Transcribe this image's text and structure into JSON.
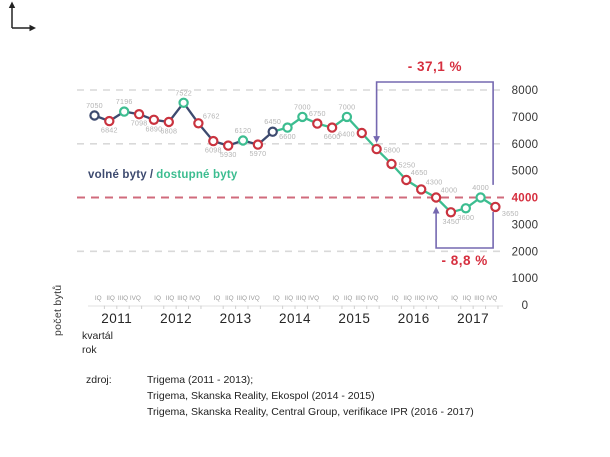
{
  "legend": {
    "series1": "volné byty",
    "separator": "/",
    "series2": "dostupné byty"
  },
  "axis_titles": {
    "y": "počet bytů",
    "x_line1": "kvartál",
    "x_line2": "rok"
  },
  "source": {
    "label": "zdroj:",
    "lines": [
      "Trigema (2011 - 2013);",
      "Trigema, Skanska Reality, Ekospol (2014 - 2015)",
      "Trigema, Skanska Reality, Central Group, verifikace IPR (2016 - 2017)"
    ]
  },
  "colors": {
    "navy": "#3d4a6f",
    "green": "#3cbd90",
    "red_marker": "#c9333f",
    "red_text": "#d62f3f",
    "purple": "#7568b0",
    "grid_red": "#d06b7c",
    "grid_gray": "#d9d9d9",
    "label_gray": "#b5b5b5",
    "quarter_gray": "#9c9c9c",
    "axis_dark": "#343434",
    "year_dark": "#262626"
  },
  "chart_data": {
    "type": "line",
    "title": "",
    "ylabel": "počet bytů",
    "xlabel": "kvartál / rok",
    "ylim": [
      0,
      8000
    ],
    "y_ticks": [
      8000,
      7000,
      6000,
      5000,
      4000,
      3000,
      2000,
      1000,
      0
    ],
    "y_tick_highlight": 4000,
    "gridlines": [
      {
        "value": 8000,
        "style": "gray"
      },
      {
        "value": 6000,
        "style": "gray"
      },
      {
        "value": 4000,
        "style": "red"
      },
      {
        "value": 2000,
        "style": "gray"
      }
    ],
    "years": [
      "2011",
      "2012",
      "2013",
      "2014",
      "2015",
      "2016",
      "2017"
    ],
    "quarter_labels": [
      "IQ",
      "IIQ",
      "IIIQ",
      "IVQ"
    ],
    "line_split_index": 12,
    "series_legend": {
      "navy": "volné byty",
      "green": "dostupné byty"
    },
    "points": [
      {
        "year": 2011,
        "quarter": "IQ",
        "value": 7050,
        "marker": "navy",
        "label_pos": "above"
      },
      {
        "year": 2011,
        "quarter": "IIQ",
        "value": 6842,
        "marker": "red",
        "label_pos": "below"
      },
      {
        "year": 2011,
        "quarter": "IIIQ",
        "value": 7196,
        "marker": "green",
        "label_pos": "above"
      },
      {
        "year": 2011,
        "quarter": "IVQ",
        "value": 7098,
        "marker": "red",
        "label_pos": "below"
      },
      {
        "year": 2012,
        "quarter": "IQ",
        "value": 6890,
        "marker": "red",
        "label_pos": "below"
      },
      {
        "year": 2012,
        "quarter": "IIQ",
        "value": 6808,
        "marker": "red",
        "label_pos": "below"
      },
      {
        "year": 2012,
        "quarter": "IIIQ",
        "value": 7522,
        "marker": "green",
        "label_pos": "above"
      },
      {
        "year": 2012,
        "quarter": "IVQ",
        "value": 6762,
        "marker": "red",
        "label_pos": "above-right"
      },
      {
        "year": 2013,
        "quarter": "IQ",
        "value": 6098,
        "marker": "red",
        "label_pos": "below"
      },
      {
        "year": 2013,
        "quarter": "IIQ",
        "value": 5930,
        "marker": "red",
        "label_pos": "below"
      },
      {
        "year": 2013,
        "quarter": "IIIQ",
        "value": 6120,
        "marker": "green",
        "label_pos": "above"
      },
      {
        "year": 2013,
        "quarter": "IVQ",
        "value": 5970,
        "marker": "red",
        "label_pos": "below"
      },
      {
        "year": 2014,
        "quarter": "IQ",
        "value": 6450,
        "marker": "navy",
        "label_pos": "above"
      },
      {
        "year": 2014,
        "quarter": "IIQ",
        "value": 6600,
        "marker": "green",
        "label_pos": "below"
      },
      {
        "year": 2014,
        "quarter": "IIIQ",
        "value": 7000,
        "marker": "green",
        "label_pos": "above"
      },
      {
        "year": 2014,
        "quarter": "IVQ",
        "value": 6750,
        "marker": "red",
        "label_pos": "above"
      },
      {
        "year": 2015,
        "quarter": "IQ",
        "value": 6600,
        "marker": "red",
        "label_pos": "below"
      },
      {
        "year": 2015,
        "quarter": "IIQ",
        "value": 7000,
        "marker": "green",
        "label_pos": "above"
      },
      {
        "year": 2015,
        "quarter": "IIIQ",
        "value": 6400,
        "marker": "red",
        "label_pos": "left"
      },
      {
        "year": 2015,
        "quarter": "IVQ",
        "value": 5800,
        "marker": "red",
        "label_pos": "right"
      },
      {
        "year": 2016,
        "quarter": "IQ",
        "value": 5250,
        "marker": "red",
        "label_pos": "right"
      },
      {
        "year": 2016,
        "quarter": "IIQ",
        "value": 4650,
        "marker": "red",
        "label_pos": "above-right"
      },
      {
        "year": 2016,
        "quarter": "IIIQ",
        "value": 4300,
        "marker": "red",
        "label_pos": "above-right"
      },
      {
        "year": 2016,
        "quarter": "IVQ",
        "value": 4000,
        "marker": "red",
        "label_pos": "above-right"
      },
      {
        "year": 2017,
        "quarter": "IQ",
        "value": 3450,
        "marker": "red",
        "label_pos": "below"
      },
      {
        "year": 2017,
        "quarter": "IIQ",
        "value": 3600,
        "marker": "green",
        "label_pos": "below"
      },
      {
        "year": 2017,
        "quarter": "IIIQ",
        "value": 4000,
        "marker": "green",
        "label_pos": "above"
      },
      {
        "year": 2017,
        "quarter": "IVQ",
        "value": 3650,
        "marker": "red",
        "label_pos": "below-right"
      }
    ],
    "annotations": [
      {
        "label": "- 37,1 %",
        "position": "top",
        "from": {
          "year": 2015,
          "quarter": "IVQ",
          "value": 5800
        },
        "to": {
          "year": 2017,
          "quarter": "IVQ",
          "value": 3650
        }
      },
      {
        "label": "- 8,8 %",
        "position": "bottom",
        "from": {
          "year": 2016,
          "quarter": "IVQ",
          "value": 4000
        },
        "to": {
          "year": 2017,
          "quarter": "IVQ",
          "value": 3650
        }
      }
    ]
  }
}
